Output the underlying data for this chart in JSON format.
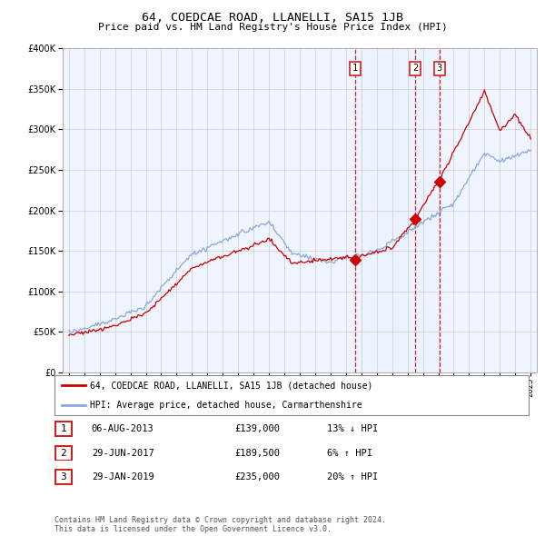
{
  "title": "64, COEDCAE ROAD, LLANELLI, SA15 1JB",
  "subtitle": "Price paid vs. HM Land Registry's House Price Index (HPI)",
  "hpi_label": "HPI: Average price, detached house, Carmarthenshire",
  "property_label": "64, COEDCAE ROAD, LLANELLI, SA15 1JB (detached house)",
  "footer": "Contains HM Land Registry data © Crown copyright and database right 2024.\nThis data is licensed under the Open Government Licence v3.0.",
  "sales": [
    {
      "num": 1,
      "date": "06-AUG-2013",
      "price": "£139,000",
      "pct": "13% ↓ HPI",
      "year": 2013.59
    },
    {
      "num": 2,
      "date": "29-JUN-2017",
      "price": "£189,500",
      "pct": "6% ↑ HPI",
      "year": 2017.49
    },
    {
      "num": 3,
      "date": "29-JAN-2019",
      "price": "£235,000",
      "pct": "20% ↑ HPI",
      "year": 2019.08
    }
  ],
  "red_color": "#cc0000",
  "blue_color": "#88aadd",
  "shade_color": "#ddeeff",
  "dashed_color": "#cc0000",
  "ylim": [
    0,
    400000
  ],
  "xlim_start": 1994.6,
  "xlim_end": 2025.4
}
